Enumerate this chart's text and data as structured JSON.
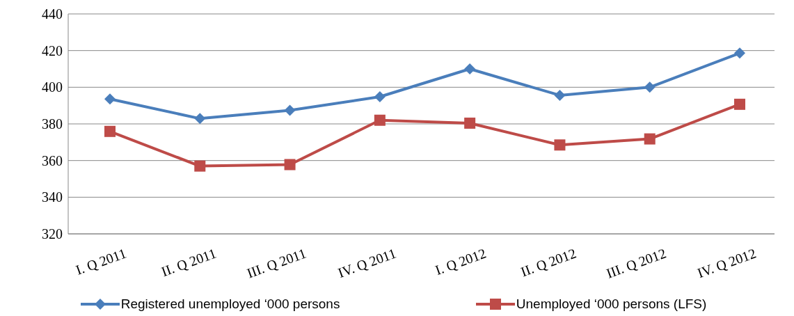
{
  "chart_data": {
    "type": "line",
    "categories": [
      "I. Q 2011",
      "II. Q 2011",
      "III. Q 2011",
      "IV. Q 2011",
      "I. Q 2012",
      "II. Q 2012",
      "III. Q 2012",
      "IV. Q 2012"
    ],
    "series": [
      {
        "name": "Registered unemployed ‘000 persons",
        "color": "#4a7ebb",
        "marker": "diamond",
        "values": [
          393.6,
          382.9,
          387.4,
          394.8,
          410,
          395.6,
          400,
          418.6
        ]
      },
      {
        "name": "Unemployed ‘000 persons (LFS)",
        "color": "#be4b48",
        "marker": "square",
        "values": [
          375.9,
          357,
          357.8,
          382,
          380.4,
          368.5,
          371.8,
          390.7
        ]
      }
    ],
    "ylim": [
      320,
      440
    ],
    "yticks": [
      320,
      340,
      360,
      380,
      400,
      420,
      440
    ],
    "grid": "y",
    "legend": "bottom",
    "line_style": "solid"
  }
}
